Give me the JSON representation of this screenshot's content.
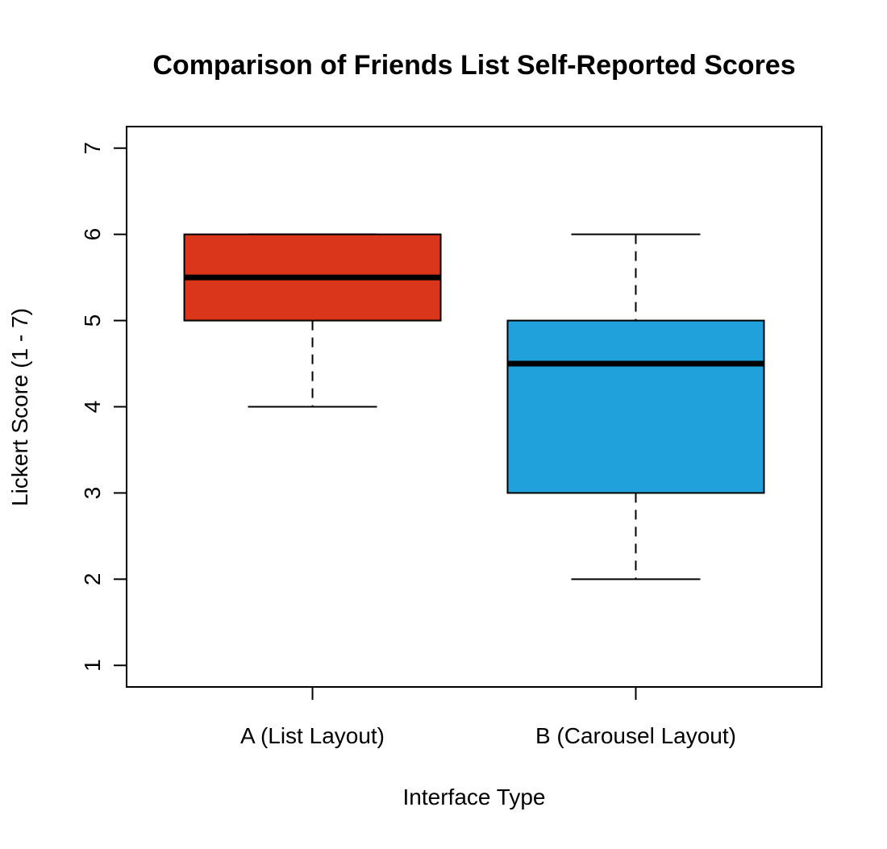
{
  "chart_data": {
    "type": "box",
    "title": "Comparison of Friends List Self-Reported Scores",
    "xlabel": "Interface Type",
    "ylabel": "Lickert Score (1 - 7)",
    "ylim": [
      0.75,
      7.25
    ],
    "yticks": [
      1,
      2,
      3,
      4,
      5,
      6,
      7
    ],
    "yticklabels": [
      "1",
      "2",
      "3",
      "4",
      "5",
      "6",
      "7"
    ],
    "categories": [
      "A (List Layout)",
      "B (Carousel Layout)"
    ],
    "series": [
      {
        "category": "A (List Layout)",
        "whisker_low": 4,
        "q1": 5,
        "median": 5.5,
        "q3": 6,
        "whisker_high": 6,
        "color": "#d9361b"
      },
      {
        "category": "B (Carousel Layout)",
        "whisker_low": 2,
        "q1": 3,
        "median": 4.5,
        "q3": 5,
        "whisker_high": 6,
        "color": "#21a1db"
      }
    ],
    "grid": false,
    "legend": "none"
  }
}
